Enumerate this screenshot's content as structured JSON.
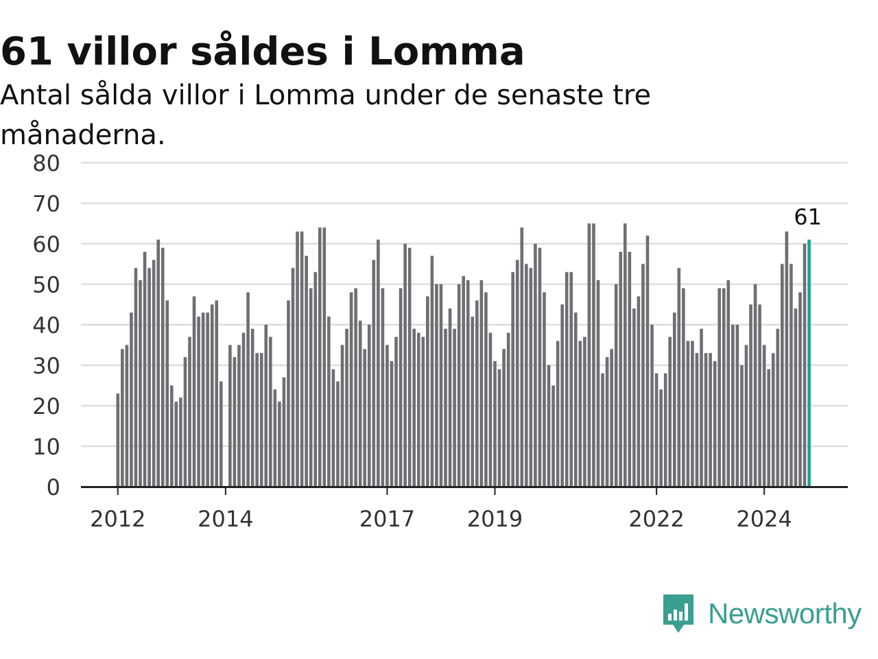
{
  "header": {
    "title": "61 villor såldes i Lomma",
    "subtitle": "Antal sålda villor i Lomma under de senaste tre månaderna."
  },
  "brand": {
    "name": "Newsworthy",
    "icon": "newsworthy-logo-icon",
    "color": "#3a9e90"
  },
  "colors": {
    "bar": "#6e6e73",
    "highlight": "#1aa391",
    "grid": "#dddddd",
    "axis": "#222222"
  },
  "chart_data": {
    "type": "bar",
    "ylim": [
      0,
      80
    ],
    "yticks": [
      0,
      10,
      20,
      30,
      40,
      50,
      60,
      70,
      80
    ],
    "xticks": [
      {
        "label": "2012",
        "index": 0
      },
      {
        "label": "2014",
        "index": 24
      },
      {
        "label": "2017",
        "index": 60
      },
      {
        "label": "2019",
        "index": 84
      },
      {
        "label": "2022",
        "index": 120
      },
      {
        "label": "2024",
        "index": 144
      }
    ],
    "first_month": "2012-01",
    "highlight_label": "61",
    "values": [
      23,
      34,
      35,
      43,
      54,
      51,
      58,
      54,
      56,
      61,
      59,
      46,
      25,
      21,
      22,
      32,
      37,
      47,
      42,
      43,
      43,
      45,
      46,
      26,
      0,
      35,
      32,
      35,
      38,
      48,
      39,
      33,
      33,
      40,
      37,
      24,
      21,
      27,
      46,
      54,
      63,
      63,
      57,
      49,
      53,
      64,
      64,
      42,
      29,
      26,
      35,
      39,
      48,
      49,
      41,
      34,
      40,
      56,
      61,
      49,
      35,
      31,
      37,
      49,
      60,
      59,
      39,
      38,
      37,
      47,
      57,
      50,
      50,
      39,
      44,
      39,
      50,
      52,
      51,
      42,
      46,
      51,
      48,
      38,
      31,
      29,
      34,
      38,
      53,
      56,
      64,
      55,
      54,
      60,
      59,
      48,
      30,
      25,
      36,
      45,
      53,
      53,
      43,
      36,
      37,
      65,
      65,
      51,
      28,
      32,
      34,
      50,
      58,
      65,
      58,
      44,
      47,
      55,
      62,
      40,
      28,
      24,
      28,
      37,
      43,
      54,
      49,
      36,
      36,
      33,
      39,
      33,
      33,
      31,
      49,
      49,
      51,
      40,
      40,
      30,
      35,
      45,
      50,
      45,
      35,
      29,
      33,
      39,
      55,
      63,
      55,
      44,
      48,
      60,
      61
    ]
  }
}
